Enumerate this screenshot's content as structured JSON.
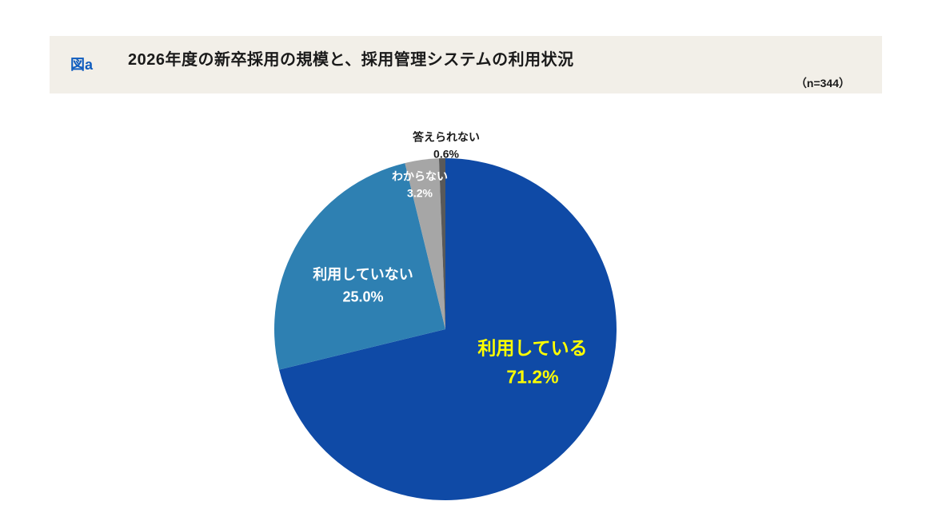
{
  "page": {
    "background": "#FFFFFF"
  },
  "header": {
    "tag": "図a",
    "tag_color": "#0F5CBE",
    "band_color": "#F2EFE8",
    "title": "2026年度の新卒採用の規模と、採用管理システムの利用状況",
    "sample_label": "（n=344）"
  },
  "chart_data": {
    "type": "pie",
    "title": "2026年度の新卒採用の規模と、採用管理システムの利用状況",
    "n": 344,
    "start_angle_deg": 0,
    "direction": "clockwise",
    "legend_position": "none",
    "slices": [
      {
        "label": "利用している",
        "value": 71.2,
        "display": "71.2%",
        "color": "#0F4AA6",
        "label_color": "#FFFF00",
        "label_placement": "inside"
      },
      {
        "label": "利用していない",
        "value": 25.0,
        "display": "25.0%",
        "color": "#2E80B2",
        "label_color": "#FFFFFF",
        "label_placement": "inside"
      },
      {
        "label": "わからない",
        "value": 3.2,
        "display": "3.2%",
        "color": "#A6A6A6",
        "label_color": "#FFFFFF",
        "label_placement": "inside"
      },
      {
        "label": "答えられない",
        "value": 0.6,
        "display": "0.6%",
        "color": "#595959",
        "label_color": "#1A1A1A",
        "label_placement": "outside"
      }
    ]
  }
}
